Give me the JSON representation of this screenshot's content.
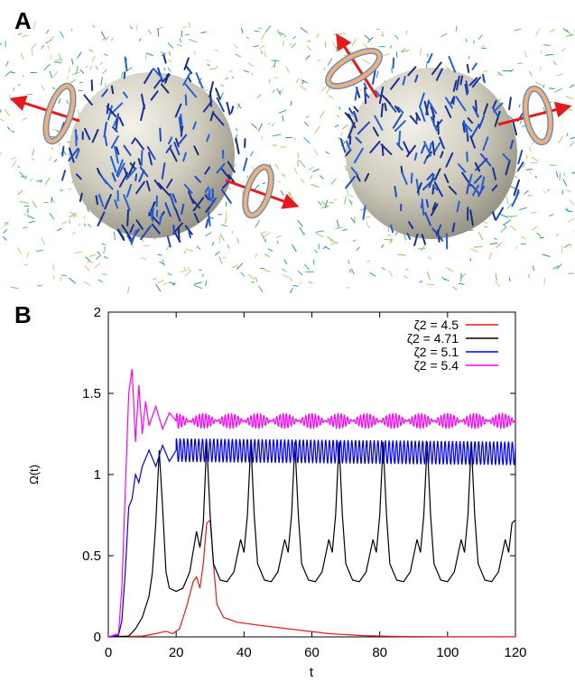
{
  "panels": {
    "a_label": "A",
    "b_label": "B"
  },
  "chart_data": {
    "type": "line",
    "xlabel": "t",
    "ylabel": "Ω(t)",
    "xlim": [
      0,
      120
    ],
    "ylim": [
      0,
      2
    ],
    "xticks": [
      0,
      20,
      40,
      60,
      80,
      100,
      120
    ],
    "yticks": [
      0,
      0.5,
      1,
      1.5,
      2
    ],
    "ytick_labels": [
      "0",
      "0.5",
      "1",
      "1.5",
      "2"
    ],
    "grid": false,
    "legend_position": "top-right",
    "series": [
      {
        "name": "ζ2 = 4.5",
        "color": "#e41a1c",
        "points": [
          [
            0,
            0
          ],
          [
            10,
            0.005
          ],
          [
            14,
            0.02
          ],
          [
            17,
            0.035
          ],
          [
            19,
            0.02
          ],
          [
            21,
            0.05
          ],
          [
            23,
            0.18
          ],
          [
            25,
            0.34
          ],
          [
            26,
            0.37
          ],
          [
            27,
            0.3
          ],
          [
            28,
            0.45
          ],
          [
            29,
            0.7
          ],
          [
            30,
            0.72
          ],
          [
            31,
            0.45
          ],
          [
            32,
            0.2
          ],
          [
            34,
            0.12
          ],
          [
            38,
            0.09
          ],
          [
            45,
            0.07
          ],
          [
            55,
            0.045
          ],
          [
            65,
            0.02
          ],
          [
            75,
            0.008
          ],
          [
            85,
            0.003
          ],
          [
            100,
            0.001
          ],
          [
            120,
            0.0005
          ]
        ]
      },
      {
        "name": "ζ2 = 4.71",
        "color": "#000000",
        "points": [
          [
            0,
            0
          ],
          [
            6,
            0.005
          ],
          [
            8,
            0.05
          ],
          [
            10,
            0.12
          ],
          [
            12,
            0.25
          ],
          [
            13,
            0.4
          ],
          [
            14,
            0.7
          ],
          [
            15,
            1.15
          ],
          [
            16,
            0.8
          ],
          [
            17,
            0.4
          ],
          [
            18,
            0.3
          ],
          [
            20,
            0.28
          ],
          [
            22,
            0.3
          ],
          [
            24,
            0.4
          ],
          [
            26,
            0.65
          ],
          [
            27,
            0.55
          ],
          [
            28,
            0.7
          ],
          [
            29,
            1.2
          ],
          [
            30,
            0.75
          ],
          [
            31,
            0.45
          ],
          [
            33,
            0.35
          ],
          [
            35,
            0.34
          ],
          [
            37,
            0.4
          ],
          [
            39,
            0.6
          ],
          [
            40,
            0.52
          ],
          [
            41,
            0.75
          ],
          [
            42,
            1.2
          ],
          [
            43,
            0.75
          ],
          [
            44,
            0.45
          ],
          [
            46,
            0.35
          ],
          [
            48,
            0.34
          ],
          [
            50,
            0.4
          ],
          [
            52,
            0.6
          ],
          [
            53,
            0.52
          ],
          [
            54,
            0.75
          ],
          [
            55,
            1.2
          ],
          [
            56,
            0.75
          ],
          [
            57,
            0.45
          ],
          [
            59,
            0.35
          ],
          [
            61,
            0.34
          ],
          [
            63,
            0.4
          ],
          [
            65,
            0.6
          ],
          [
            66,
            0.52
          ],
          [
            67,
            0.75
          ],
          [
            68,
            1.2
          ],
          [
            69,
            0.75
          ],
          [
            70,
            0.45
          ],
          [
            72,
            0.35
          ],
          [
            74,
            0.34
          ],
          [
            76,
            0.4
          ],
          [
            78,
            0.6
          ],
          [
            79,
            0.52
          ],
          [
            80,
            0.75
          ],
          [
            81,
            1.2
          ],
          [
            82,
            0.75
          ],
          [
            83,
            0.45
          ],
          [
            85,
            0.35
          ],
          [
            87,
            0.34
          ],
          [
            89,
            0.4
          ],
          [
            91,
            0.6
          ],
          [
            92,
            0.52
          ],
          [
            93,
            0.75
          ],
          [
            94,
            1.2
          ],
          [
            95,
            0.75
          ],
          [
            96,
            0.45
          ],
          [
            98,
            0.35
          ],
          [
            100,
            0.34
          ],
          [
            102,
            0.4
          ],
          [
            104,
            0.6
          ],
          [
            105,
            0.52
          ],
          [
            106,
            0.75
          ],
          [
            107,
            1.2
          ],
          [
            108,
            0.75
          ],
          [
            109,
            0.45
          ],
          [
            111,
            0.35
          ],
          [
            113,
            0.34
          ],
          [
            115,
            0.4
          ],
          [
            117,
            0.6
          ],
          [
            118,
            0.52
          ],
          [
            119,
            0.7
          ],
          [
            120,
            0.72
          ]
        ]
      },
      {
        "name": "ζ2 = 5.1",
        "color": "#0000ee",
        "points": [
          [
            0,
            0
          ],
          [
            3,
            0.01
          ],
          [
            4,
            0.1
          ],
          [
            5,
            0.4
          ],
          [
            6,
            0.8
          ],
          [
            7,
            0.85
          ],
          [
            8,
            1.0
          ],
          [
            9,
            0.95
          ],
          [
            10,
            1.05
          ],
          [
            12,
            1.15
          ],
          [
            14,
            1.05
          ],
          [
            16,
            1.18
          ],
          [
            18,
            1.08
          ],
          [
            20,
            1.15
          ],
          [
            120,
            1.13
          ]
        ],
        "osc_from": 20,
        "osc_period": 1.1,
        "osc_amp": 0.07
      },
      {
        "name": "ζ2 = 5.4",
        "color": "#ff00ff",
        "points": [
          [
            0,
            0
          ],
          [
            3,
            0.02
          ],
          [
            4,
            0.3
          ],
          [
            5,
            0.9
          ],
          [
            6,
            1.5
          ],
          [
            7,
            1.65
          ],
          [
            8,
            1.2
          ],
          [
            9,
            1.55
          ],
          [
            10,
            1.25
          ],
          [
            11,
            1.45
          ],
          [
            12,
            1.3
          ],
          [
            14,
            1.42
          ],
          [
            16,
            1.28
          ],
          [
            18,
            1.38
          ],
          [
            20,
            1.33
          ],
          [
            120,
            1.33
          ]
        ],
        "osc_from": 20,
        "osc_period": 0.95,
        "osc_amp": 0.045,
        "osc_beat_period": 8
      }
    ]
  }
}
